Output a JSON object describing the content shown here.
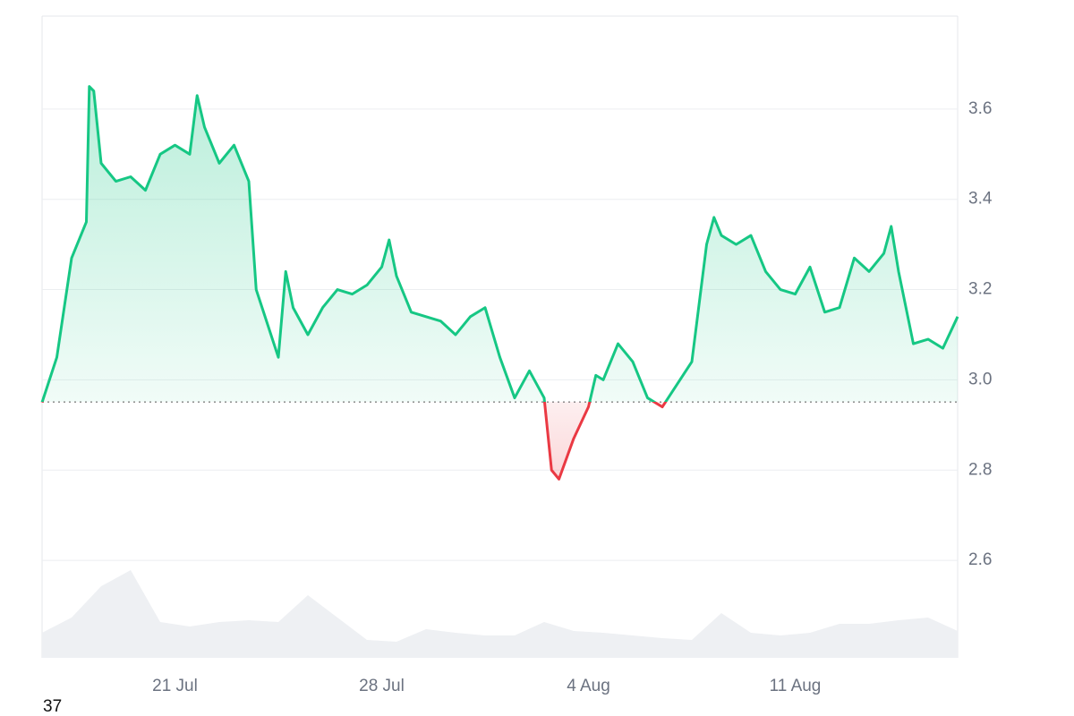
{
  "chart_data": {
    "type": "line",
    "x": [
      16.5,
      17.0,
      17.5,
      18.0,
      18.1,
      18.25,
      18.5,
      19.0,
      19.5,
      20.0,
      20.5,
      21.0,
      21.5,
      21.75,
      22.0,
      22.5,
      23.0,
      23.5,
      23.75,
      24.0,
      24.5,
      24.75,
      25.0,
      25.5,
      26.0,
      26.5,
      27.0,
      27.5,
      28.0,
      28.25,
      28.5,
      29.0,
      29.5,
      30.0,
      30.5,
      31.0,
      31.5,
      32.0,
      32.5,
      33.0,
      33.5,
      33.75,
      34.0,
      34.5,
      35.0,
      35.25,
      35.5,
      36.0,
      36.5,
      37.0,
      37.5,
      38.0,
      38.5,
      39.0,
      39.25,
      39.5,
      40.0,
      40.5,
      41.0,
      41.5,
      42.0,
      42.5,
      43.0,
      43.5,
      44.0,
      44.5,
      45.0,
      45.25,
      45.5,
      46.0,
      46.5,
      47.0,
      47.5
    ],
    "values": [
      2.95,
      3.05,
      3.27,
      3.35,
      3.65,
      3.64,
      3.48,
      3.44,
      3.45,
      3.42,
      3.5,
      3.52,
      3.5,
      3.63,
      3.56,
      3.48,
      3.52,
      3.44,
      3.2,
      3.15,
      3.05,
      3.24,
      3.16,
      3.1,
      3.16,
      3.2,
      3.19,
      3.21,
      3.25,
      3.31,
      3.23,
      3.15,
      3.14,
      3.13,
      3.1,
      3.14,
      3.16,
      3.05,
      2.96,
      3.02,
      2.96,
      2.8,
      2.78,
      2.87,
      2.94,
      3.01,
      3.0,
      3.08,
      3.04,
      2.96,
      2.94,
      2.99,
      3.04,
      3.3,
      3.36,
      3.32,
      3.3,
      3.32,
      3.24,
      3.2,
      3.19,
      3.25,
      3.15,
      3.16,
      3.27,
      3.24,
      3.28,
      3.34,
      3.24,
      3.08,
      3.09,
      3.07,
      3.14
    ],
    "baseline": 2.951,
    "up_color": "#16c784",
    "down_color": "#ea3943",
    "xlim": [
      16.5,
      47.5
    ],
    "xticks": [
      {
        "value": 21,
        "label": "21 Jul"
      },
      {
        "value": 28,
        "label": "28 Jul"
      },
      {
        "value": 35,
        "label": "4 Aug"
      },
      {
        "value": 42,
        "label": "11 Aug"
      }
    ],
    "ylim": [
      2.384,
      3.806
    ],
    "yticks": [
      {
        "value": 2.6,
        "label": "2.6"
      },
      {
        "value": 2.8,
        "label": "2.8"
      },
      {
        "value": 3.0,
        "label": "3.0"
      },
      {
        "value": 3.2,
        "label": "3.2"
      },
      {
        "value": 3.4,
        "label": "3.4"
      },
      {
        "value": 3.6,
        "label": "3.6"
      }
    ],
    "grid": true,
    "volume": {
      "color": "#eef0f3",
      "x": [
        16.5,
        17.5,
        18.5,
        19.5,
        20.5,
        21.5,
        22.5,
        23.5,
        24.5,
        25.5,
        26.5,
        27.5,
        28.5,
        29.5,
        30.5,
        31.5,
        32.5,
        33.5,
        34.5,
        35.5,
        36.5,
        37.5,
        38.5,
        39.5,
        40.5,
        41.5,
        42.5,
        43.5,
        44.5,
        45.5,
        46.5,
        47.5
      ],
      "values": [
        28,
        45,
        80,
        98,
        40,
        35,
        40,
        42,
        40,
        70,
        45,
        20,
        18,
        32,
        28,
        25,
        25,
        40,
        30,
        28,
        25,
        22,
        20,
        50,
        28,
        25,
        28,
        38,
        38,
        42,
        45,
        30
      ],
      "ylim": [
        0,
        120
      ]
    },
    "footer_text": "37"
  }
}
